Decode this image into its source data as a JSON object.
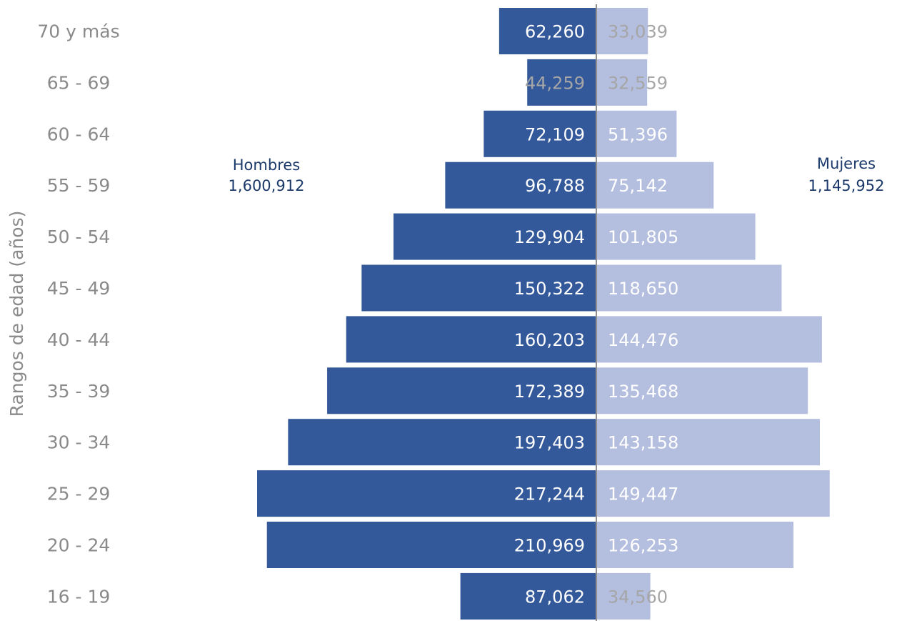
{
  "chart_data": {
    "type": "bar",
    "orientation": "horizontal",
    "layout": "population-pyramid",
    "ylabel": "Rangos de edad (años)",
    "categories": [
      "70 y más",
      "65 - 69",
      "60 - 64",
      "55 - 59",
      "50 - 54",
      "45 - 49",
      "40 - 44",
      "35 - 39",
      "30 - 34",
      "25 - 29",
      "20 - 24",
      "16 - 19"
    ],
    "series": [
      {
        "name": "Hombres",
        "total": "1,600,912",
        "side": "left",
        "color": "#34599a",
        "values": [
          62260,
          44259,
          72109,
          96788,
          129904,
          150322,
          160203,
          172389,
          197403,
          217244,
          210969,
          87062
        ],
        "labels": [
          "62,260",
          "44,259",
          "72,109",
          "96,788",
          "129,904",
          "150,322",
          "160,203",
          "172,389",
          "197,403",
          "217,244",
          "210,969",
          "87,062"
        ]
      },
      {
        "name": "Mujeres",
        "total": "1,145,952",
        "side": "right",
        "color": "#b4bedf",
        "values": [
          33039,
          32559,
          51396,
          75142,
          101805,
          118650,
          144476,
          135468,
          143158,
          149447,
          126253,
          34560
        ],
        "labels": [
          "33,039",
          "32,559",
          "51,396",
          "75,142",
          "101,805",
          "118,650",
          "144,476",
          "135,468",
          "143,158",
          "149,447",
          "126,253",
          "34,560"
        ]
      }
    ],
    "label_color_inside": "#ffffff",
    "label_color_overflow": "#a6a6a6",
    "legend_placement": "beside bars (left and right)",
    "grid": false
  }
}
